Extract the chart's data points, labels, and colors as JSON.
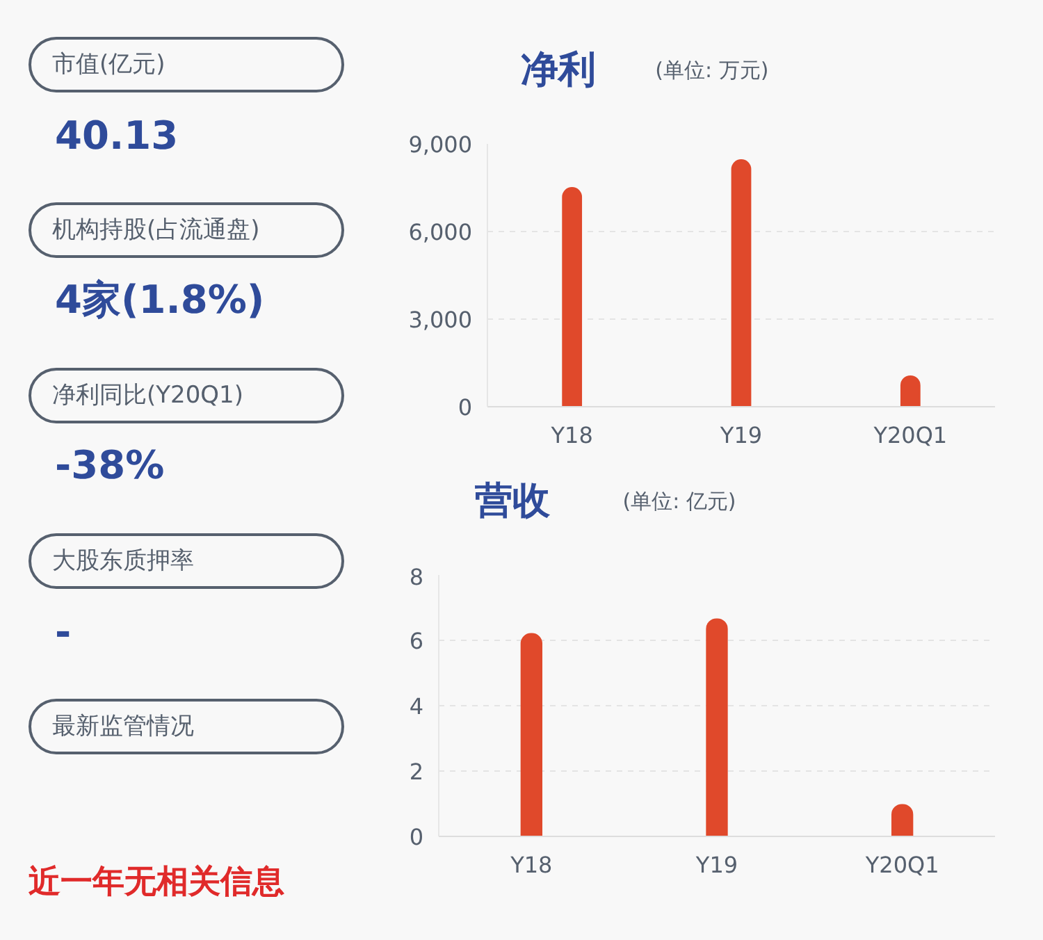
{
  "chart_data": [
    {
      "type": "other",
      "annotations": [
        "市值(亿元)",
        "40.13",
        "机构持股(占流通盘)",
        "4家(1.8%)",
        "净利同比(Y20Q1)",
        "-38%",
        "大股东质押率",
        "-",
        "最新监管情况",
        "近一年无相关信息"
      ]
    },
    {
      "type": "bar",
      "title": "净利",
      "subtitle": "(单位: 万元)",
      "categories": [
        "Y18",
        "Y19",
        "Y20Q1"
      ],
      "values": [
        7500,
        8450,
        1050
      ],
      "color": "#e0492b",
      "ylim": [
        0,
        9000
      ],
      "yticks": [
        {
          "value": 0,
          "label": "0"
        },
        {
          "value": 3000,
          "label": "3,000"
        },
        {
          "value": 6000,
          "label": "6,000"
        },
        {
          "value": 9000,
          "label": "9,000"
        }
      ],
      "grid": "y"
    },
    {
      "type": "bar",
      "title": "营收",
      "subtitle": "(单位: 亿元)",
      "categories": [
        "Y18",
        "Y19",
        "Y20Q1"
      ],
      "values": [
        6.2,
        6.65,
        0.97
      ],
      "color": "#e0492b",
      "ylim": [
        0,
        8
      ],
      "yticks": [
        0,
        2,
        4,
        6,
        8
      ],
      "grid": "y"
    }
  ]
}
